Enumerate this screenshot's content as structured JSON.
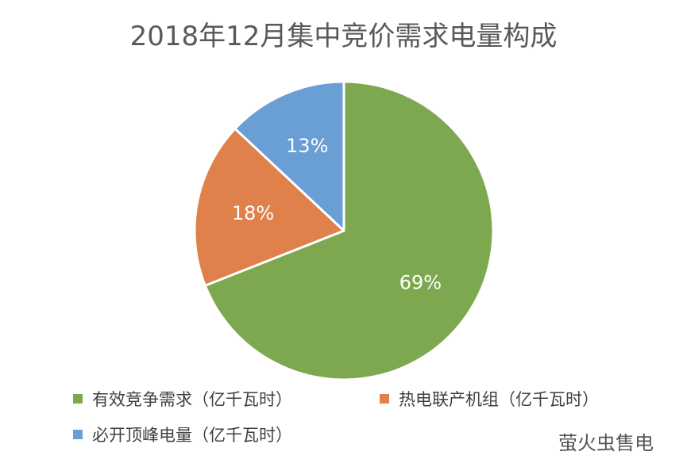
{
  "chart_data": {
    "type": "pie",
    "title": "2018年12月集中竞价需求电量构成",
    "categories": [
      "有效竞争需求（亿千瓦时）",
      "热电联产机组（亿千瓦时）",
      "必开顶峰电量（亿千瓦时）"
    ],
    "values": [
      69,
      18,
      13
    ],
    "data_labels": [
      "69%",
      "18%",
      "13%"
    ],
    "colors": [
      "#7ea84f",
      "#e0804a",
      "#699fd4"
    ],
    "legend_position": "bottom",
    "start_angle": "12 o'clock, clockwise"
  },
  "watermark": "萤火虫售电"
}
